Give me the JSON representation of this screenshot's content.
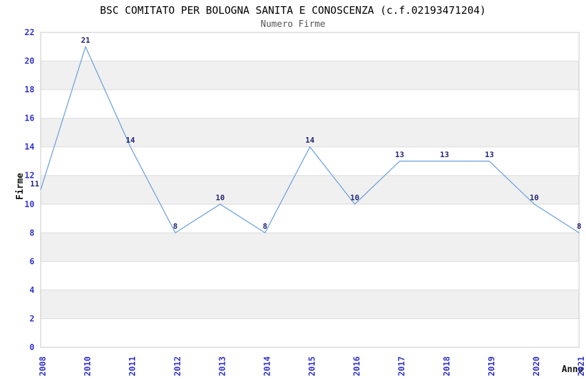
{
  "chart": {
    "title": "BSC COMITATO PER BOLOGNA SANITA E CONOSCENZA (c.f.02193471204)",
    "subtitle": "Numero Firme"
  },
  "chart_data": {
    "type": "line",
    "title": "BSC COMITATO PER BOLOGNA SANITA E CONOSCENZA (c.f.02193471204)",
    "subtitle": "Numero Firme",
    "xlabel": "Anno",
    "ylabel": "Firme",
    "categories": [
      "2008",
      "2010",
      "2011",
      "2012",
      "2013",
      "2014",
      "2015",
      "2016",
      "2017",
      "2018",
      "2019",
      "2020",
      "2021"
    ],
    "values": [
      11,
      21,
      14,
      8,
      10,
      8,
      14,
      10,
      13,
      13,
      13,
      10,
      8
    ],
    "point_labels": [
      "11",
      "21",
      "14",
      "8",
      "10",
      "8",
      "14",
      "10",
      "13",
      "13",
      "13",
      "10",
      "8"
    ],
    "ylim": [
      0,
      22
    ],
    "ytick_step": 2,
    "yticks": [
      0,
      2,
      4,
      6,
      8,
      10,
      12,
      14,
      16,
      18,
      20,
      22
    ],
    "legend": "none",
    "grid": "horizontal-gridlines-with-alternating-bands",
    "band_interval": 2,
    "colors": {
      "line": "#6ea3dd",
      "tick_label": "#3333cc",
      "data_label": "#222277",
      "band": "#f0f0f0",
      "grid": "#dcdcdc",
      "border": "#c9c9c9",
      "title": "#000000",
      "subtitle": "#555555",
      "axis_title": "#111111"
    }
  }
}
